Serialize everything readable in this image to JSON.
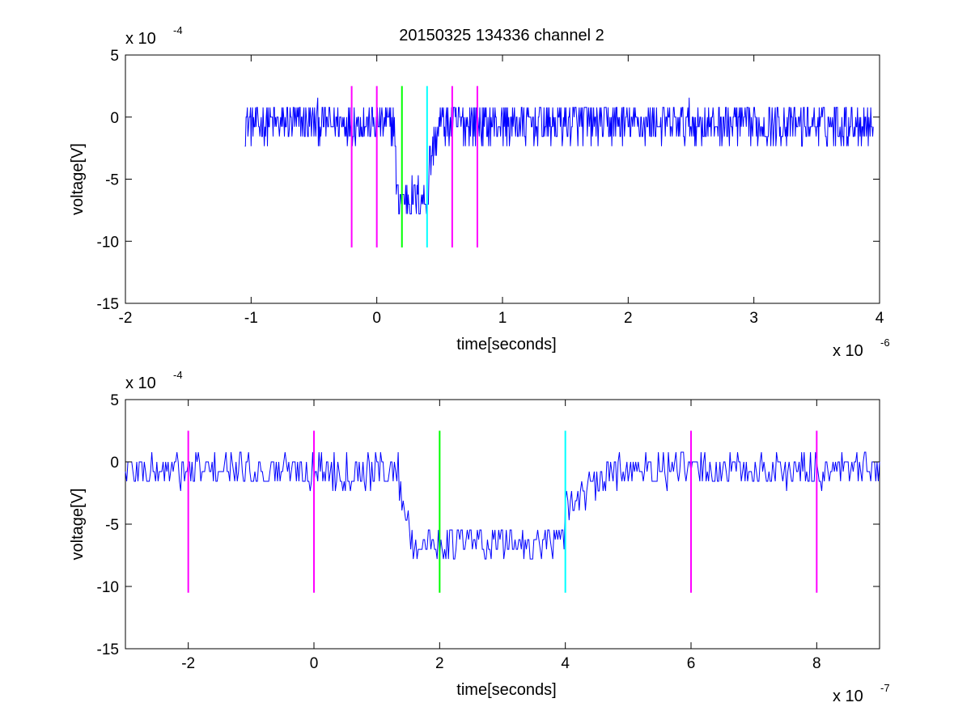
{
  "title": "20150325 134336 channel 2",
  "colors": {
    "trace": "#0000ff",
    "marker_magenta": "#ff00ff",
    "marker_green": "#00ff00",
    "marker_cyan": "#00ffff",
    "axes": "#000000",
    "background": "#ffffff"
  },
  "chart_data": [
    {
      "type": "line",
      "xlabel": "time[seconds]",
      "ylabel": "voltage[V]",
      "x_exponent_label": "x 10",
      "x_exponent": "-6",
      "y_exponent_label": "x 10",
      "y_exponent": "-4",
      "xlim": [
        -2,
        4
      ],
      "ylim": [
        -15,
        5
      ],
      "xticks": [
        "-2",
        "-1",
        "0",
        "1",
        "2",
        "3",
        "4"
      ],
      "yticks": [
        "5",
        "0",
        "-5",
        "-10",
        "-15"
      ],
      "grid": false,
      "series": [
        {
          "x_range": [
            -1.05,
            3.95
          ],
          "baseline": -0.5,
          "noise_amplitude": 1.2,
          "step_dips": [
            {
              "start": 0.14,
              "end": 0.41,
              "depth": -6.5
            },
            {
              "start": 0.41,
              "end": 0.5,
              "depth": -4.0
            }
          ]
        }
      ],
      "markers": [
        {
          "x": -0.2,
          "y_range": [
            -10.5,
            2.5
          ],
          "color": "magenta"
        },
        {
          "x": 0.0,
          "y_range": [
            -10.5,
            2.5
          ],
          "color": "magenta"
        },
        {
          "x": 0.2,
          "y_range": [
            -10.5,
            2.5
          ],
          "color": "green"
        },
        {
          "x": 0.4,
          "y_range": [
            -10.5,
            2.5
          ],
          "color": "cyan"
        },
        {
          "x": 0.6,
          "y_range": [
            -10.5,
            2.5
          ],
          "color": "magenta"
        },
        {
          "x": 0.8,
          "y_range": [
            -10.5,
            2.5
          ],
          "color": "magenta"
        }
      ]
    },
    {
      "type": "line",
      "xlabel": "time[seconds]",
      "ylabel": "voltage[V]",
      "x_exponent_label": "x 10",
      "x_exponent": "-7",
      "y_exponent_label": "x 10",
      "y_exponent": "-4",
      "xlim": [
        -3,
        9
      ],
      "ylim": [
        -15,
        5
      ],
      "xticks": [
        "-2",
        "0",
        "2",
        "4",
        "6",
        "8"
      ],
      "yticks": [
        "5",
        "0",
        "-5",
        "-10",
        "-15"
      ],
      "grid": false,
      "series": [
        {
          "x_range": [
            -3,
            9
          ],
          "baseline": -0.7,
          "noise_amplitude": 1.0,
          "step_dips": [
            {
              "start": 1.35,
              "end": 4.0,
              "depth": -6.5
            },
            {
              "start": 4.0,
              "end": 5.0,
              "depth": -3.5
            }
          ]
        }
      ],
      "markers": [
        {
          "x": -2,
          "y_range": [
            -10.5,
            2.5
          ],
          "color": "magenta"
        },
        {
          "x": 0,
          "y_range": [
            -10.5,
            2.5
          ],
          "color": "magenta"
        },
        {
          "x": 2,
          "y_range": [
            -10.5,
            2.5
          ],
          "color": "green"
        },
        {
          "x": 4,
          "y_range": [
            -10.5,
            2.5
          ],
          "color": "cyan"
        },
        {
          "x": 6,
          "y_range": [
            -10.5,
            2.5
          ],
          "color": "magenta"
        },
        {
          "x": 8,
          "y_range": [
            -10.5,
            2.5
          ],
          "color": "magenta"
        }
      ]
    }
  ]
}
